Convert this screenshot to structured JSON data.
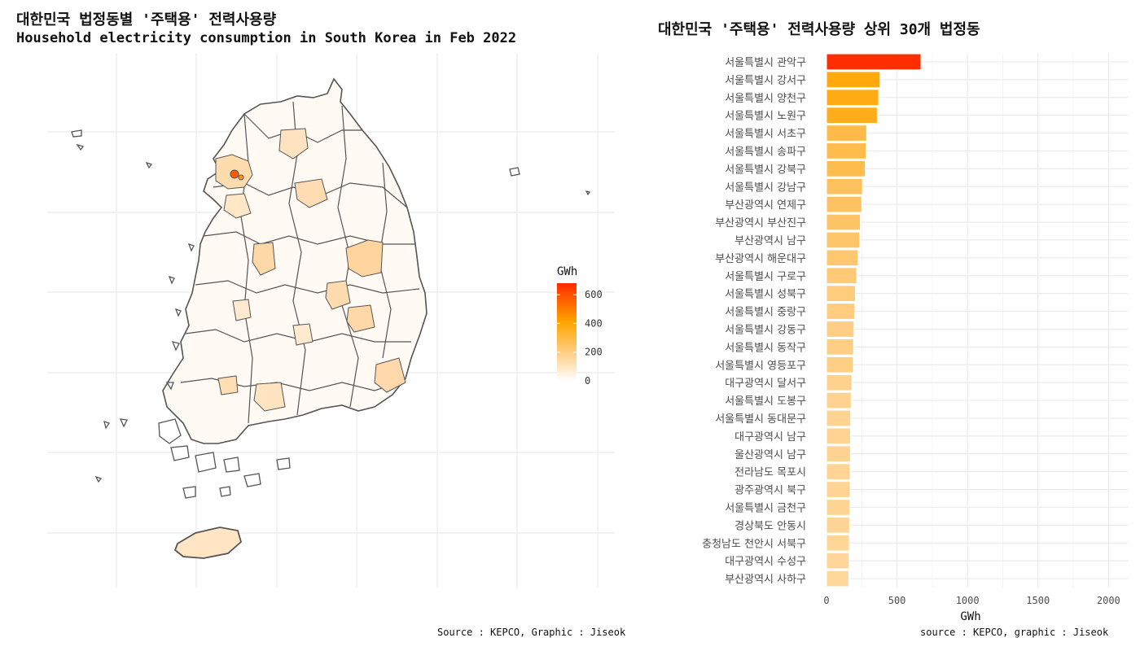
{
  "left": {
    "title": "대한민국 법정동별 '주택용' 전력사용량",
    "subtitle": "Household electricity consumption in South Korea in Feb 2022",
    "caption": "Source : KEPCO, Graphic : Jiseok"
  },
  "right": {
    "title": "대한민국 '주택용' 전력사용량 상위 30개 법정동",
    "caption": "source : KEPCO, graphic : Jiseok"
  },
  "chart_data": [
    {
      "type": "heatmap",
      "description_kind": "choropleth",
      "legend": {
        "title": "GWh",
        "ticks": [
          0,
          200,
          400,
          600
        ],
        "range": [
          0,
          680
        ],
        "colors": [
          "#ffffff",
          "#ffcc80",
          "#ffa500",
          "#ff2a00"
        ]
      }
    },
    {
      "type": "bar",
      "orientation": "horizontal",
      "xlabel": "GWh",
      "xlim": [
        0,
        2050
      ],
      "xticks": [
        0,
        500,
        1000,
        1500,
        2000
      ],
      "categories": [
        "서울특별시 관악구",
        "서울특별시 강서구",
        "서울특별시 양천구",
        "서울특별시 노원구",
        "서울특별시 서초구",
        "서울특별시 송파구",
        "서울특별시 강북구",
        "서울특별시 강남구",
        "부산광역시 연제구",
        "부산광역시 부산진구",
        "부산광역시 남구",
        "부산광역시 해운대구",
        "서울특별시 구로구",
        "서울특별시 성북구",
        "서울특별시 중랑구",
        "서울특별시 강동구",
        "서울특별시 동작구",
        "서울특별시 영등포구",
        "대구광역시 달서구",
        "서울특별시 도봉구",
        "서울특별시 동대문구",
        "대구광역시 남구",
        "울산광역시 남구",
        "전라남도 목포시",
        "광주광역시 북구",
        "서울특별시 금천구",
        "경상북도 안동시",
        "충청남도 천안시 서북구",
        "대구광역시 수성구",
        "부산광역시 사하구"
      ],
      "values": [
        670,
        380,
        370,
        360,
        285,
        280,
        275,
        255,
        250,
        240,
        235,
        225,
        215,
        205,
        200,
        195,
        192,
        190,
        180,
        175,
        172,
        170,
        170,
        168,
        168,
        166,
        164,
        162,
        160,
        158
      ]
    }
  ]
}
